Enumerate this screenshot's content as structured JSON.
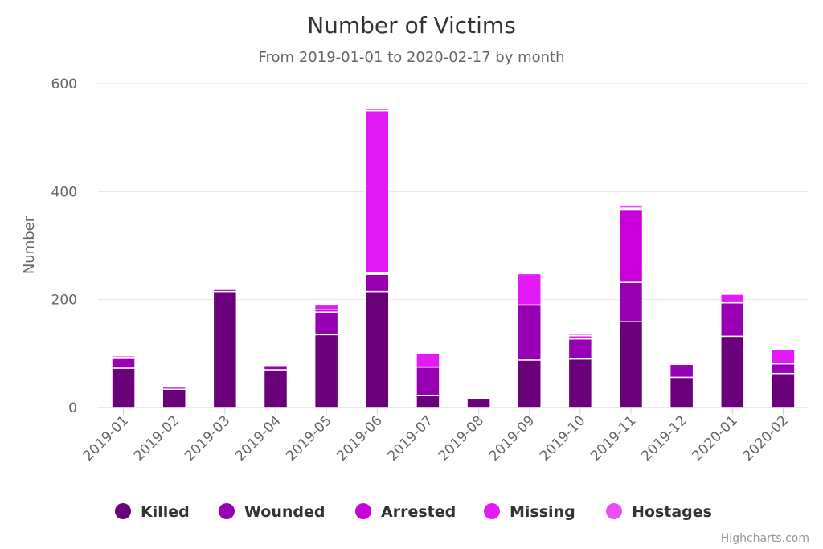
{
  "chart_data": {
    "type": "bar",
    "stacked": true,
    "title": "Number of Victims",
    "subtitle": "From 2019-01-01 to 2020-02-17 by month",
    "ylabel": "Number",
    "ylim": [
      0,
      600
    ],
    "yticks": [
      0,
      200,
      400,
      600
    ],
    "grid": true,
    "legend_position": "bottom",
    "categories": [
      "2019-01",
      "2019-02",
      "2019-03",
      "2019-04",
      "2019-05",
      "2019-06",
      "2019-07",
      "2019-08",
      "2019-09",
      "2019-10",
      "2019-11",
      "2019-12",
      "2020-01",
      "2020-02"
    ],
    "series": [
      {
        "name": "Killed",
        "color": "#6a007a",
        "values": [
          73,
          34,
          215,
          70,
          135,
          215,
          22,
          16,
          88,
          90,
          159,
          56,
          132,
          63
        ]
      },
      {
        "name": "Wounded",
        "color": "#9800b3",
        "values": [
          18,
          4,
          4,
          8,
          42,
          32,
          53,
          0,
          102,
          37,
          73,
          24,
          62,
          18
        ]
      },
      {
        "name": "Arrested",
        "color": "#c900d9",
        "values": [
          2,
          2,
          2,
          2,
          5,
          2,
          0,
          0,
          0,
          1,
          135,
          0,
          0,
          0
        ]
      },
      {
        "name": "Missing",
        "color": "#e21af5",
        "values": [
          3,
          2,
          2,
          2,
          8,
          301,
          26,
          0,
          58,
          5,
          2,
          2,
          16,
          26
        ]
      },
      {
        "name": "Hostages",
        "color": "#e84ff5",
        "values": [
          0,
          0,
          0,
          0,
          0,
          5,
          0,
          0,
          0,
          3,
          6,
          0,
          0,
          0
        ]
      }
    ]
  },
  "credits": "Highcharts.com"
}
